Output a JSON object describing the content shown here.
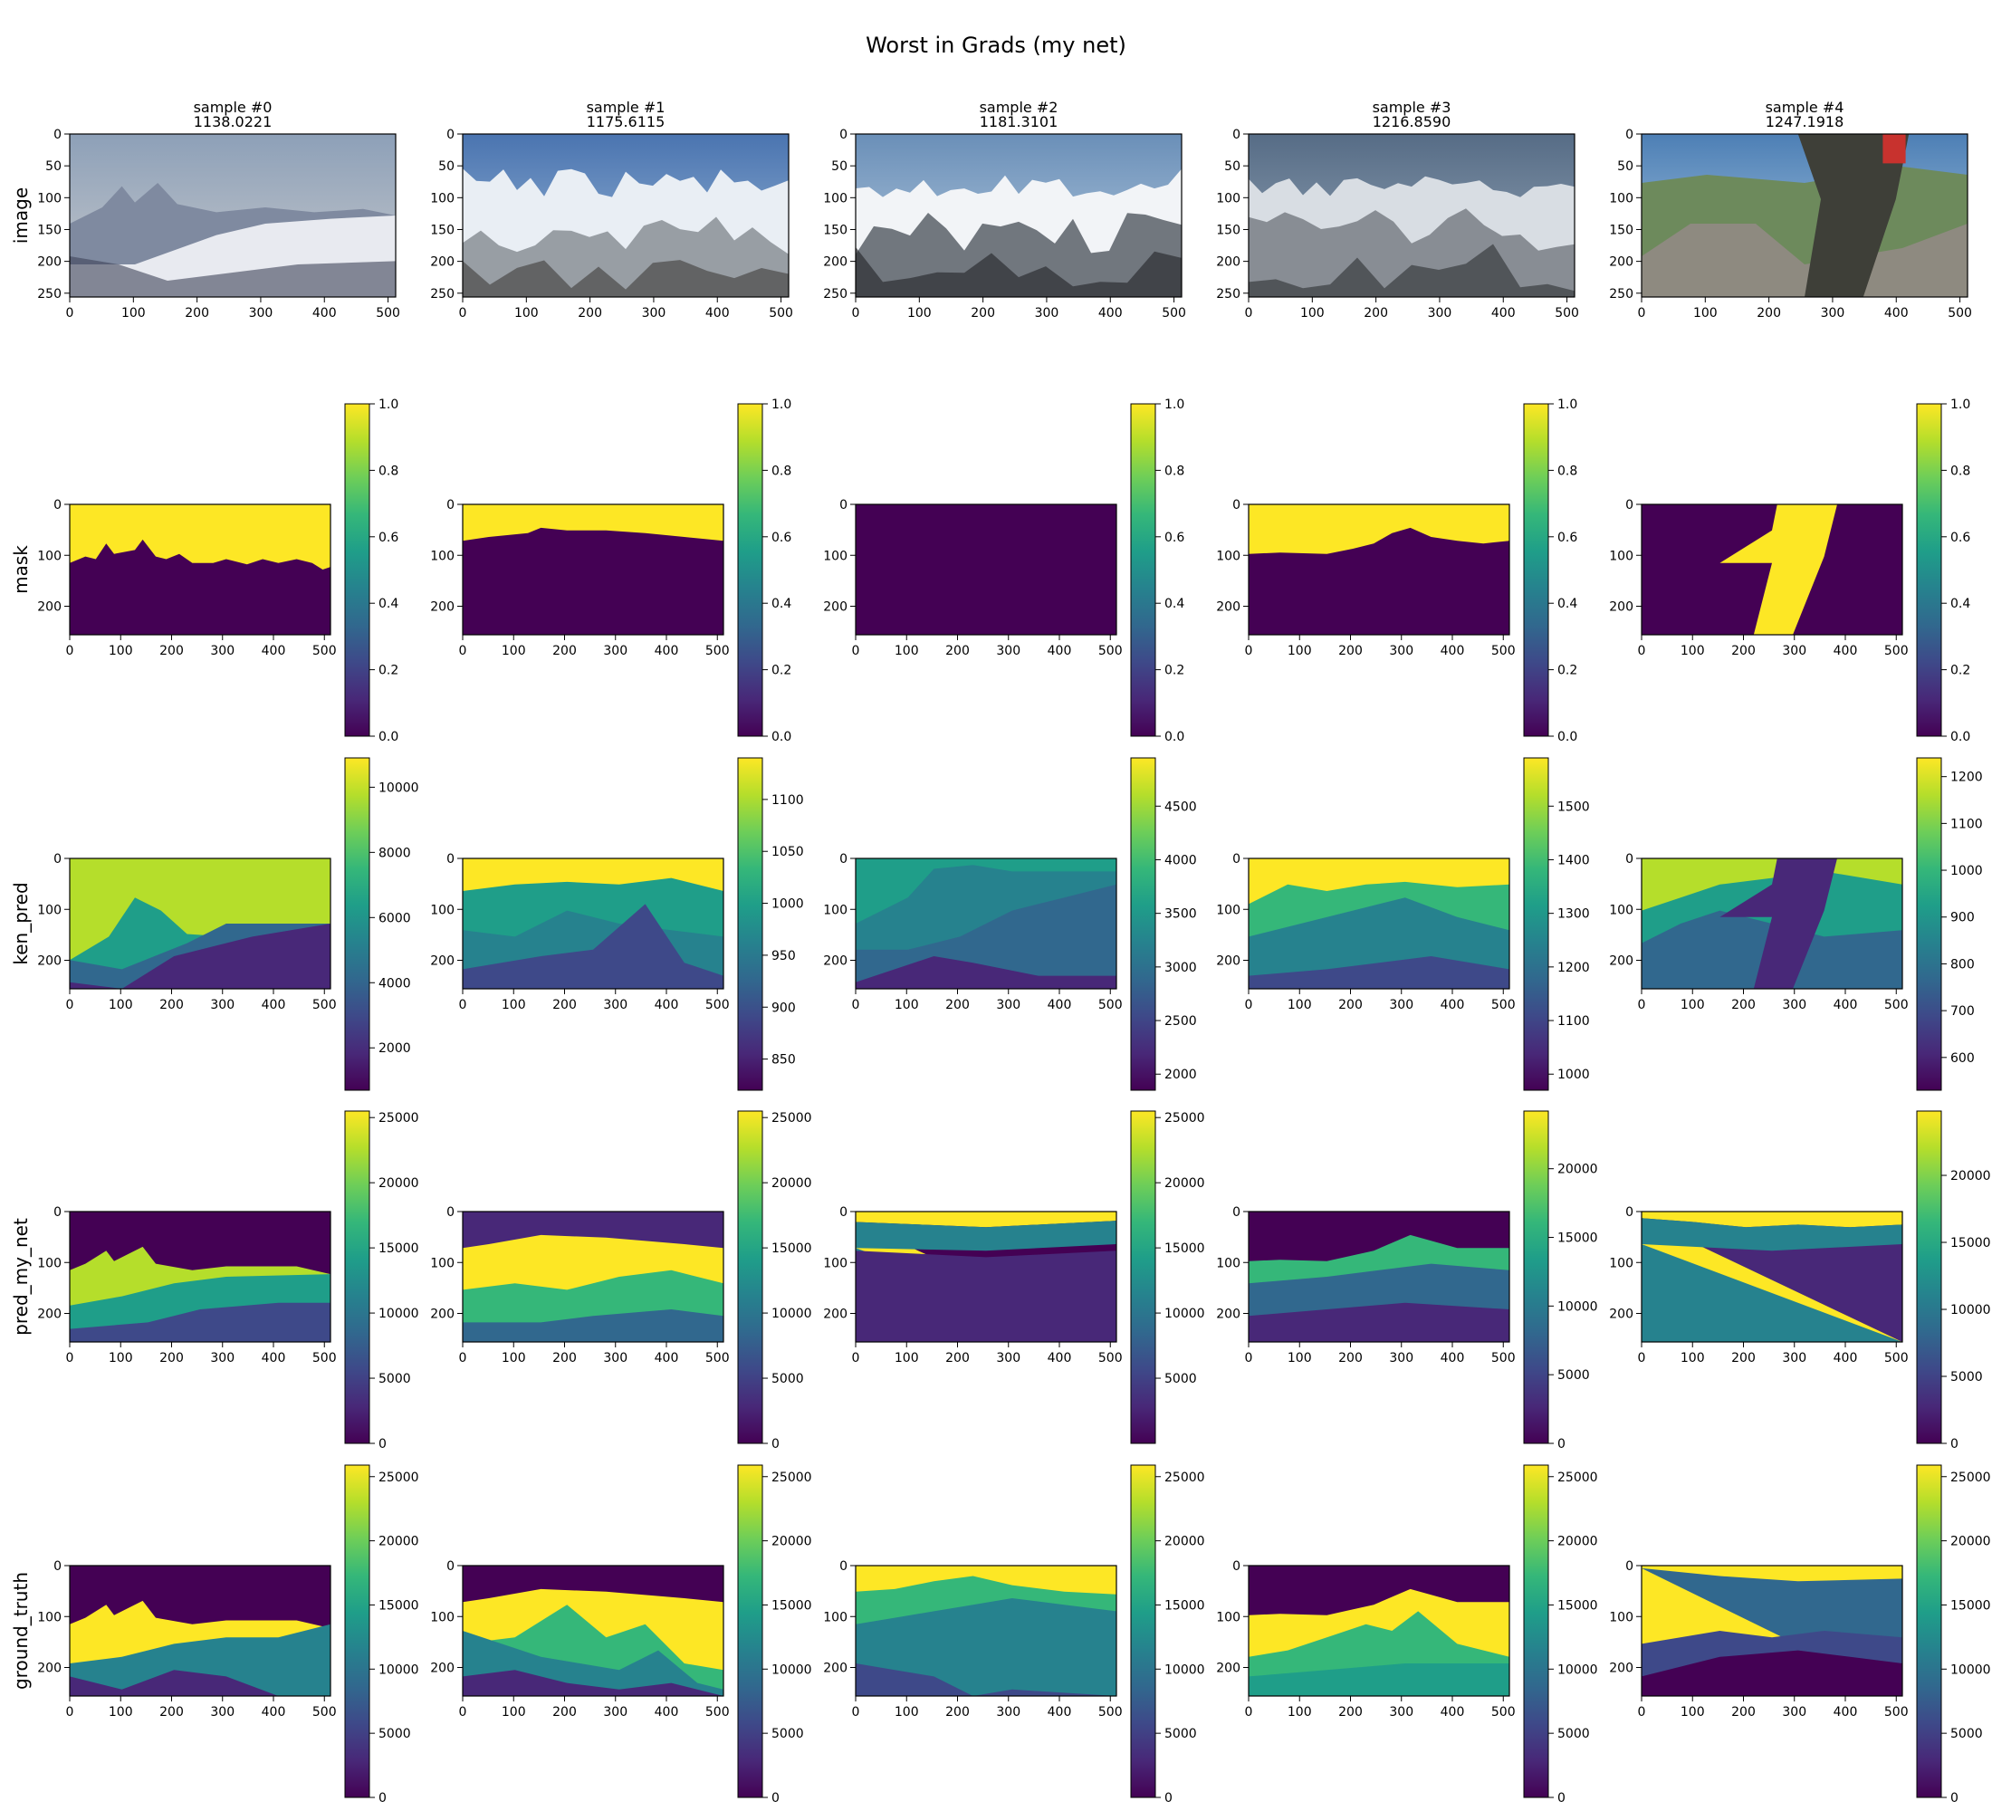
{
  "figure": {
    "title": "Worst in Grads (my net)"
  },
  "columns": [
    {
      "label": "sample #0",
      "score": "1138.0221"
    },
    {
      "label": "sample #1",
      "score": "1175.6115"
    },
    {
      "label": "sample #2",
      "score": "1181.3101"
    },
    {
      "label": "sample #3",
      "score": "1216.8590"
    },
    {
      "label": "sample #4",
      "score": "1247.1918"
    }
  ],
  "rows": [
    {
      "label": "image"
    },
    {
      "label": "mask"
    },
    {
      "label": "ken_pred"
    },
    {
      "label": "pred_my_net"
    },
    {
      "label": "ground_truth"
    }
  ],
  "axes": {
    "image_xticks": [
      "0",
      "100",
      "200",
      "300",
      "400",
      "500"
    ],
    "image_yticks": [
      "0",
      "50",
      "100",
      "150",
      "200",
      "250"
    ],
    "map_xticks": [
      "0",
      "100",
      "200",
      "300",
      "400",
      "500"
    ],
    "map_yticks": [
      "0",
      "100",
      "200"
    ],
    "extent": {
      "x": [
        0,
        512
      ],
      "y": [
        0,
        256
      ]
    }
  },
  "colormap": {
    "name": "viridis",
    "stops": [
      "#440154",
      "#482878",
      "#3e4989",
      "#31688e",
      "#26828e",
      "#1f9e89",
      "#35b779",
      "#6ece58",
      "#b5de2b",
      "#fde725"
    ]
  },
  "chart_data": {
    "type": "heatmap",
    "description_rows": [
      "image",
      "mask",
      "ken_pred",
      "pred_my_net",
      "ground_truth"
    ],
    "colorbars": {
      "mask": [
        {
          "min": 0.0,
          "max": 1.0,
          "ticks": [
            "0.0",
            "0.2",
            "0.4",
            "0.6",
            "0.8",
            "1.0"
          ]
        },
        {
          "min": 0.0,
          "max": 1.0,
          "ticks": [
            "0.0",
            "0.2",
            "0.4",
            "0.6",
            "0.8",
            "1.0"
          ]
        },
        {
          "min": 0.0,
          "max": 1.0,
          "ticks": [
            "0.0",
            "0.2",
            "0.4",
            "0.6",
            "0.8",
            "1.0"
          ]
        },
        {
          "min": 0.0,
          "max": 1.0,
          "ticks": [
            "0.0",
            "0.2",
            "0.4",
            "0.6",
            "0.8",
            "1.0"
          ]
        },
        {
          "min": 0.0,
          "max": 1.0,
          "ticks": [
            "0.0",
            "0.2",
            "0.4",
            "0.6",
            "0.8",
            "1.0"
          ]
        }
      ],
      "ken_pred": [
        {
          "min": 700,
          "max": 10900,
          "ticks": [
            "2000",
            "4000",
            "6000",
            "8000",
            "10000"
          ],
          "tick_values": [
            2000,
            4000,
            6000,
            8000,
            10000
          ]
        },
        {
          "min": 820,
          "max": 1140,
          "ticks": [
            "850",
            "900",
            "950",
            "1000",
            "1050",
            "1100"
          ],
          "tick_values": [
            850,
            900,
            950,
            1000,
            1050,
            1100
          ]
        },
        {
          "min": 1850,
          "max": 4950,
          "ticks": [
            "2000",
            "2500",
            "3000",
            "3500",
            "4000",
            "4500"
          ],
          "tick_values": [
            2000,
            2500,
            3000,
            3500,
            4000,
            4500
          ]
        },
        {
          "min": 970,
          "max": 1590,
          "ticks": [
            "1000",
            "1100",
            "1200",
            "1300",
            "1400",
            "1500"
          ],
          "tick_values": [
            1000,
            1100,
            1200,
            1300,
            1400,
            1500
          ]
        },
        {
          "min": 530,
          "max": 1240,
          "ticks": [
            "600",
            "700",
            "800",
            "900",
            "1000",
            "1100",
            "1200"
          ],
          "tick_values": [
            600,
            700,
            800,
            900,
            1000,
            1100,
            1200
          ]
        }
      ],
      "pred_my_net": [
        {
          "min": 0,
          "max": 25500,
          "ticks": [
            "0",
            "5000",
            "10000",
            "15000",
            "20000",
            "25000"
          ],
          "tick_values": [
            0,
            5000,
            10000,
            15000,
            20000,
            25000
          ]
        },
        {
          "min": 0,
          "max": 25500,
          "ticks": [
            "0",
            "5000",
            "10000",
            "15000",
            "20000",
            "25000"
          ],
          "tick_values": [
            0,
            5000,
            10000,
            15000,
            20000,
            25000
          ]
        },
        {
          "min": 0,
          "max": 25500,
          "ticks": [
            "5000",
            "10000",
            "15000",
            "20000",
            "25000"
          ],
          "tick_values": [
            5000,
            10000,
            15000,
            20000,
            25000
          ]
        },
        {
          "min": 0,
          "max": 24200,
          "ticks": [
            "0",
            "5000",
            "10000",
            "15000",
            "20000"
          ],
          "tick_values": [
            0,
            5000,
            10000,
            15000,
            20000
          ]
        },
        {
          "min": 0,
          "max": 24800,
          "ticks": [
            "0",
            "5000",
            "10000",
            "15000",
            "20000"
          ],
          "tick_values": [
            0,
            5000,
            10000,
            15000,
            20000
          ]
        }
      ],
      "ground_truth": [
        {
          "min": 0,
          "max": 25900,
          "ticks": [
            "0",
            "5000",
            "10000",
            "15000",
            "20000",
            "25000"
          ],
          "tick_values": [
            0,
            5000,
            10000,
            15000,
            20000,
            25000
          ]
        },
        {
          "min": 0,
          "max": 25900,
          "ticks": [
            "0",
            "5000",
            "10000",
            "15000",
            "20000",
            "25000"
          ],
          "tick_values": [
            0,
            5000,
            10000,
            15000,
            20000,
            25000
          ]
        },
        {
          "min": 0,
          "max": 25900,
          "ticks": [
            "0",
            "5000",
            "10000",
            "15000",
            "20000",
            "25000"
          ],
          "tick_values": [
            0,
            5000,
            10000,
            15000,
            20000,
            25000
          ]
        },
        {
          "min": 0,
          "max": 25900,
          "ticks": [
            "0",
            "5000",
            "10000",
            "15000",
            "20000",
            "25000"
          ],
          "tick_values": [
            0,
            5000,
            10000,
            15000,
            20000,
            25000
          ]
        },
        {
          "min": 0,
          "max": 25900,
          "ticks": [
            "0",
            "5000",
            "10000",
            "15000",
            "20000",
            "25000"
          ],
          "tick_values": [
            0,
            5000,
            10000,
            15000,
            20000,
            25000
          ]
        }
      ]
    }
  }
}
